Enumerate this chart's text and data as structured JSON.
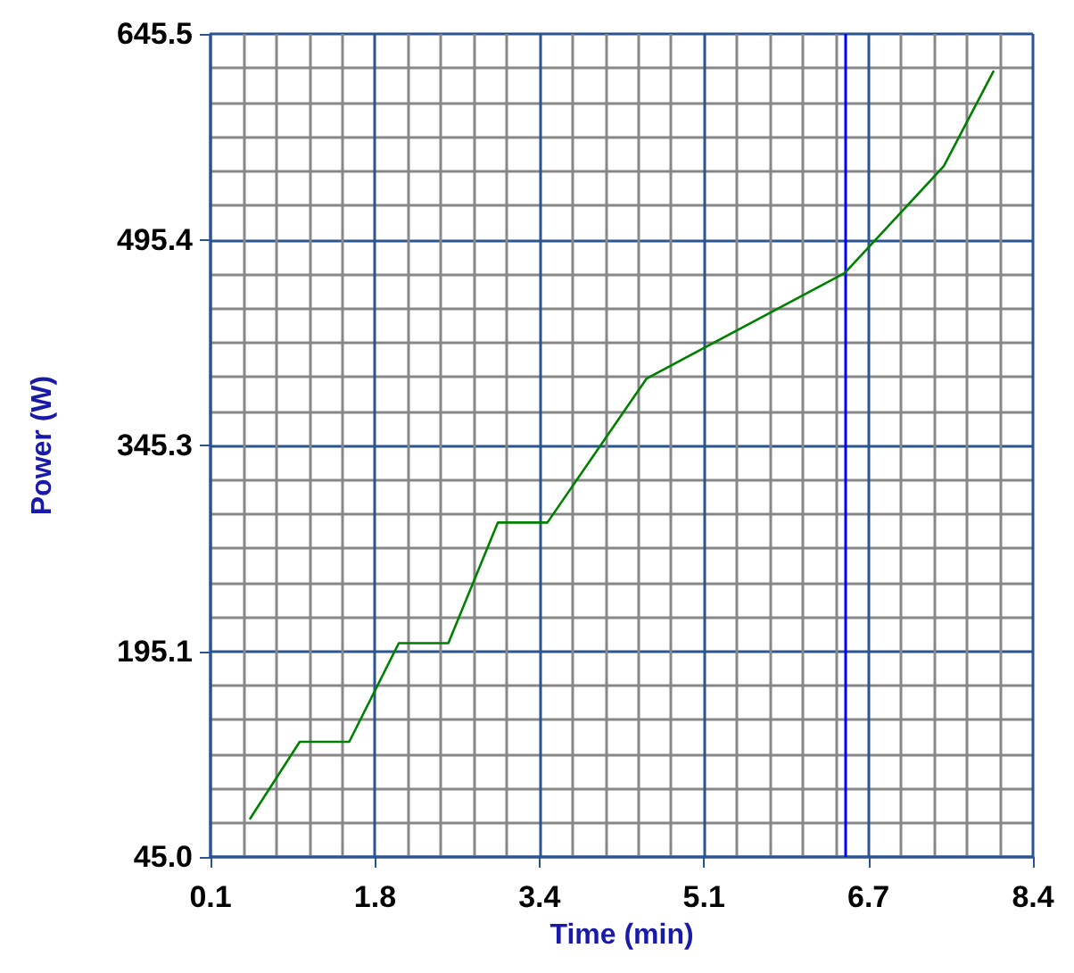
{
  "chart_data": {
    "type": "line",
    "xlabel": "Time (min)",
    "ylabel": "Power (W)",
    "x": [
      0.5,
      1.0,
      1.5,
      2.0,
      2.5,
      3.0,
      3.5,
      4.5,
      6.5,
      7.5,
      8.0
    ],
    "series": [
      {
        "color": "#008000",
        "values": [
          73,
          129,
          129,
          201,
          201,
          289,
          289,
          394,
          471,
          549,
          618
        ]
      }
    ],
    "xlim": [
      0.1,
      8.4
    ],
    "xticks": [
      {
        "value": 0.1,
        "label": "0.1"
      },
      {
        "value": 1.76,
        "label": "1.8"
      },
      {
        "value": 3.42,
        "label": "3.4"
      },
      {
        "value": 5.08,
        "label": "5.1"
      },
      {
        "value": 6.74,
        "label": "6.7"
      },
      {
        "value": 8.4,
        "label": "8.4"
      }
    ],
    "ylim": [
      45.0,
      645.5
    ],
    "yticks": [
      {
        "value": 45.0,
        "label": "45.0"
      },
      {
        "value": 195.125,
        "label": "195.1"
      },
      {
        "value": 345.25,
        "label": "345.3"
      },
      {
        "value": 495.375,
        "label": "495.4"
      },
      {
        "value": 645.5,
        "label": "645.5"
      }
    ],
    "ref_lines": [
      {
        "axis": "x",
        "value": 6.5,
        "color": "#0000ff"
      }
    ],
    "grid": true,
    "marker": "none",
    "line_style": "solid"
  }
}
